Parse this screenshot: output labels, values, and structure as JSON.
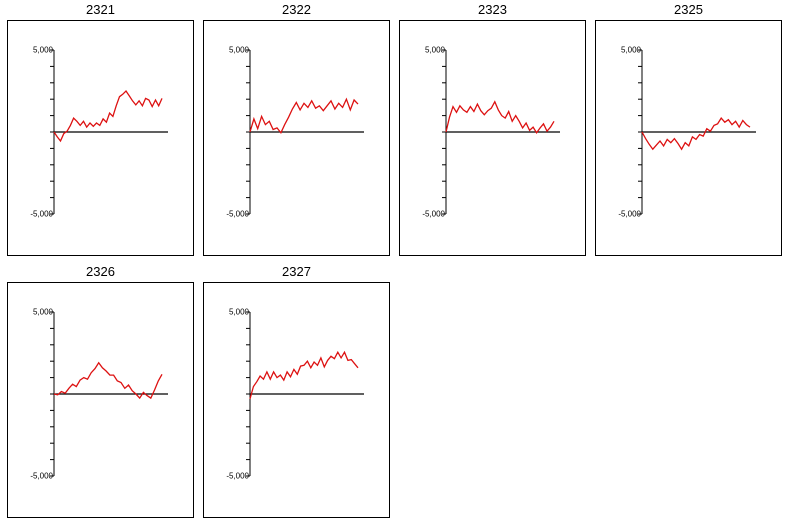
{
  "chart_data": [
    {
      "type": "line",
      "title": "2321",
      "ylim": [
        -5000,
        5000
      ],
      "y_ticks": [
        5000,
        -5000
      ],
      "y_tick_labels": [
        "5,000",
        "-5,000"
      ],
      "series": [
        {
          "values": [
            0,
            -300,
            -550,
            -100,
            50,
            400,
            850,
            650,
            400,
            650,
            300,
            550,
            350,
            550,
            400,
            800,
            600,
            1150,
            950,
            1600,
            2150,
            2300,
            2500,
            2200,
            1900,
            1650,
            1900,
            1600,
            2050,
            1950,
            1550,
            1950,
            1600,
            2050
          ]
        }
      ],
      "line_color": "#dd1111"
    },
    {
      "type": "line",
      "title": "2322",
      "ylim": [
        -5000,
        5000
      ],
      "y_ticks": [
        5000,
        -5000
      ],
      "y_tick_labels": [
        "5,000",
        "-5,000"
      ],
      "series": [
        {
          "values": [
            0,
            800,
            200,
            950,
            450,
            650,
            150,
            250,
            -50,
            450,
            900,
            1400,
            1800,
            1350,
            1750,
            1500,
            1900,
            1450,
            1600,
            1300,
            1600,
            1900,
            1400,
            1750,
            1500,
            2000,
            1350,
            1950,
            1700
          ]
        }
      ],
      "line_color": "#dd1111"
    },
    {
      "type": "line",
      "title": "2323",
      "ylim": [
        -5000,
        5000
      ],
      "y_ticks": [
        5000,
        -5000
      ],
      "y_tick_labels": [
        "5,000",
        "-5,000"
      ],
      "series": [
        {
          "values": [
            0,
            900,
            1550,
            1200,
            1600,
            1350,
            1200,
            1550,
            1250,
            1700,
            1300,
            1050,
            1300,
            1450,
            1850,
            1350,
            1000,
            850,
            1250,
            650,
            1000,
            650,
            250,
            550,
            100,
            300,
            -50,
            250,
            500,
            50,
            300,
            650
          ]
        }
      ],
      "line_color": "#dd1111"
    },
    {
      "type": "line",
      "title": "2325",
      "ylim": [
        -5000,
        5000
      ],
      "y_ticks": [
        5000,
        -5000
      ],
      "y_tick_labels": [
        "5,000",
        "-5,000"
      ],
      "series": [
        {
          "values": [
            0,
            -400,
            -750,
            -1050,
            -800,
            -550,
            -850,
            -450,
            -650,
            -400,
            -700,
            -1050,
            -650,
            -850,
            -300,
            -450,
            -150,
            -250,
            200,
            50,
            400,
            500,
            850,
            600,
            750,
            450,
            650,
            300,
            700,
            450,
            300
          ]
        }
      ],
      "line_color": "#dd1111"
    },
    {
      "type": "line",
      "title": "2326",
      "ylim": [
        -5000,
        5000
      ],
      "y_ticks": [
        5000,
        -5000
      ],
      "y_tick_labels": [
        "5,000",
        "-5,000"
      ],
      "series": [
        {
          "values": [
            0,
            -50,
            150,
            50,
            350,
            600,
            450,
            850,
            1000,
            900,
            1300,
            1550,
            1900,
            1600,
            1400,
            1150,
            1150,
            800,
            700,
            350,
            550,
            200,
            0,
            -250,
            100,
            -100,
            -250,
            250,
            800,
            1200
          ]
        }
      ],
      "line_color": "#dd1111"
    },
    {
      "type": "line",
      "title": "2327",
      "ylim": [
        -5000,
        5000
      ],
      "y_ticks": [
        5000,
        -5000
      ],
      "y_tick_labels": [
        "5,000",
        "-5,000"
      ],
      "series": [
        {
          "values": [
            -300,
            450,
            750,
            1100,
            900,
            1350,
            900,
            1350,
            1000,
            1150,
            850,
            1350,
            1050,
            1500,
            1200,
            1700,
            1750,
            2000,
            1600,
            1950,
            1750,
            2200,
            1650,
            2050,
            2300,
            2150,
            2550,
            2200,
            2550,
            2050,
            2100,
            1850,
            1600
          ]
        }
      ],
      "line_color": "#dd1111"
    }
  ]
}
